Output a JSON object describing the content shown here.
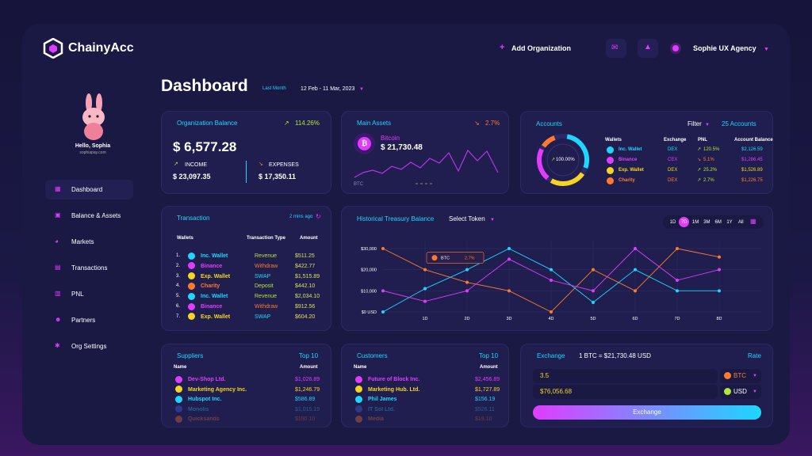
{
  "brand": "ChainyAcc",
  "header": {
    "add_org": "Add Organization",
    "agency": "Sophie UX Agency"
  },
  "user": {
    "greeting": "Hello, Sophia",
    "email": "sophiapay.com"
  },
  "nav": [
    "Dashboard",
    "Balance & Assets",
    "Markets",
    "Transactions",
    "PNL",
    "Partners",
    "Org Settings"
  ],
  "page": {
    "title": "Dashboard",
    "period": "Last Month",
    "range": "12 Feb - 11 Mar, 2023"
  },
  "org_balance": {
    "title": "Organization Balance",
    "change": "114.26%",
    "balance": "$ 6,577.28",
    "income_label": "INCOME",
    "income": "$ 23,097.35",
    "expenses_label": "EXPENSES",
    "expenses": "$ 17,350.11"
  },
  "main_assets": {
    "title": "Main Assets",
    "change": "2.7%",
    "coin": "Bitcoin",
    "value": "$ 21,730.48",
    "axis_label": "BTC"
  },
  "accounts": {
    "title": "Accounts",
    "filter": "Filter",
    "count": "25 Accounts",
    "center": "100.00%",
    "columns": [
      "Wallets",
      "Exchange",
      "PNL",
      "Account Balance"
    ],
    "rows": [
      [
        "Inc. Wallet",
        "DEX",
        "120.5%",
        "$2,126.59"
      ],
      [
        "Binance",
        "CEX",
        "5.1%",
        "$1,286.45"
      ],
      [
        "Exp. Wallet",
        "DEX",
        "25.2%",
        "$1,526.89"
      ],
      [
        "Charity",
        "DEX",
        "2.7%",
        "$1,226.75"
      ]
    ]
  },
  "transaction": {
    "title": "Transaction",
    "updated": "2 mins ago",
    "columns": [
      "Wallets",
      "Transaction Type",
      "Amount"
    ],
    "rows": [
      [
        "1.",
        "Inc. Wallet",
        "Revenue",
        "$511.25"
      ],
      [
        "2.",
        "Binance",
        "Withdraw",
        "$422.77"
      ],
      [
        "3.",
        "Exp. Wallet",
        "SWAP",
        "$1,515.89"
      ],
      [
        "4.",
        "Charity",
        "Deposit",
        "$442.10"
      ],
      [
        "5.",
        "Inc. Wallet",
        "Revenue",
        "$2,034.10"
      ],
      [
        "6.",
        "Binance",
        "Withdraw",
        "$912.56"
      ],
      [
        "7.",
        "Exp. Wallet",
        "SWAP",
        "$604.20"
      ]
    ]
  },
  "treasury": {
    "title": "Historical Treasury Balance",
    "token": "Select Token",
    "ranges": [
      "1D",
      "7D",
      "1M",
      "3M",
      "6M",
      "1Y",
      "All"
    ],
    "tooltip": {
      "name": "BTC",
      "change": "2.7%"
    },
    "chart": {
      "type": "line",
      "categories": [
        null,
        "1D",
        "2D",
        "3D",
        "4D",
        "5D",
        "6D",
        "7D",
        "8D"
      ],
      "ylim": [
        0,
        30000
      ],
      "yticks": [
        {
          "value": 0,
          "label": "$0 USD"
        },
        {
          "value": 10000,
          "label": "$10,000"
        },
        {
          "value": 20000,
          "label": "$20,000"
        },
        {
          "value": 30000,
          "label": "$30,000"
        }
      ],
      "grid": true,
      "series": [
        {
          "color": "#ff7a2f",
          "values": [
            30000,
            20000,
            14000,
            10000,
            0,
            20000,
            10000,
            30000,
            26000
          ]
        },
        {
          "color": "#1ed6ff",
          "values": [
            0,
            11000,
            20000,
            30000,
            20000,
            4500,
            20000,
            10000,
            10000
          ]
        },
        {
          "color": "#e03cff",
          "values": [
            10000,
            5000,
            10000,
            25000,
            15000,
            10000,
            30000,
            15000,
            20000
          ]
        }
      ]
    }
  },
  "suppliers": {
    "title": "Suppliers",
    "top": "Top 10",
    "columns": [
      "Name",
      "Amount"
    ],
    "rows": [
      [
        "Dev-Shop Ltd.",
        "$1,026.89"
      ],
      [
        "Marketing Agency Inc.",
        "$1,246.79"
      ],
      [
        "Hubspot Inc.",
        "$586.89"
      ],
      [
        "Monolis",
        "$1,015.19"
      ],
      [
        "Quicksands",
        "$190.10"
      ]
    ]
  },
  "customers": {
    "title": "Customers",
    "top": "Top 10",
    "columns": [
      "Name",
      "Amount"
    ],
    "rows": [
      [
        "Future of Block Inc.",
        "$2,456.89"
      ],
      [
        "Marketing Hub. Ltd.",
        "$1,727.89"
      ],
      [
        "Phil James",
        "$156.19"
      ],
      [
        "IT Sol Ltd.",
        "$526.11"
      ],
      [
        "Media",
        "$19.10"
      ]
    ]
  },
  "exchange": {
    "title": "Exchange",
    "rate_text": "1 BTC = $21,730.48 USD",
    "rate": "Rate",
    "amount": "3.5",
    "from": "BTC",
    "result": "$76,056.68",
    "to": "USD",
    "button": "Exchange"
  }
}
